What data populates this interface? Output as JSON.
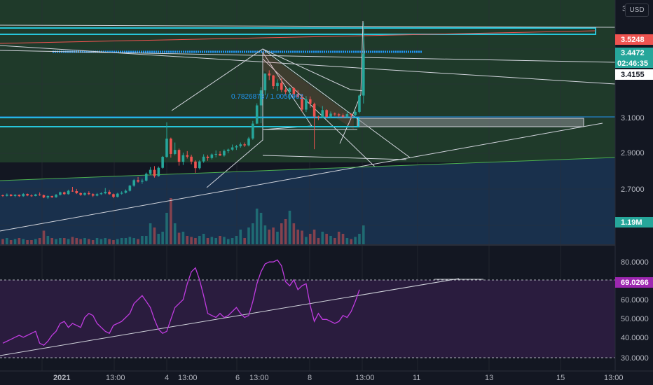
{
  "currency_label": "USD",
  "colors": {
    "background": "#131722",
    "up": "#26a69a",
    "down": "#ef5350",
    "rsi_line": "#c03ce0",
    "rsi_band": "#2a1c3e",
    "zone_green": "#1f3a2a",
    "zone_blue": "#19304c",
    "cyan": "#26c6da",
    "fib_text": "#2196f3"
  },
  "fib_label": "0.7826873 / 1.0050962",
  "price_axis": {
    "top_label": "3",
    "ticks": [
      "3.1000",
      "2.9000",
      "2.7000"
    ],
    "badges": [
      {
        "text": "3.5248",
        "kind": "red"
      },
      {
        "text": "3.4472",
        "kind": "teal"
      },
      {
        "text": "02:46:35",
        "kind": "teal"
      },
      {
        "text": "3.4155",
        "kind": "white"
      },
      {
        "text": "1.19M",
        "kind": "teal"
      }
    ]
  },
  "rsi_axis": {
    "ticks": [
      "80.0000",
      "60.0000",
      "50.0000",
      "40.0000",
      "30.0000"
    ],
    "badge": "69.0266"
  },
  "time_axis": {
    "labels": [
      "2021",
      "13:00",
      "4",
      "13:00",
      "6",
      "13:00",
      "8",
      "13:00",
      "11",
      "13",
      "15",
      "13:00"
    ]
  },
  "chart_data": [
    {
      "type": "candlestick",
      "title": "",
      "candles": [
        [
          2.607,
          2.612,
          2.598,
          2.604
        ],
        [
          2.604,
          2.618,
          2.6,
          2.611
        ],
        [
          2.611,
          2.615,
          2.6,
          2.603
        ],
        [
          2.603,
          2.614,
          2.596,
          2.61
        ],
        [
          2.61,
          2.612,
          2.598,
          2.602
        ],
        [
          2.602,
          2.62,
          2.598,
          2.615
        ],
        [
          2.615,
          2.618,
          2.602,
          2.606
        ],
        [
          2.606,
          2.613,
          2.598,
          2.603
        ],
        [
          2.603,
          2.616,
          2.601,
          2.612
        ],
        [
          2.612,
          2.624,
          2.604,
          2.608
        ],
        [
          2.608,
          2.611,
          2.59,
          2.594
        ],
        [
          2.594,
          2.607,
          2.586,
          2.603
        ],
        [
          2.603,
          2.605,
          2.591,
          2.596
        ],
        [
          2.596,
          2.615,
          2.592,
          2.61
        ],
        [
          2.61,
          2.629,
          2.606,
          2.625
        ],
        [
          2.625,
          2.629,
          2.61,
          2.614
        ],
        [
          2.614,
          2.64,
          2.611,
          2.634
        ],
        [
          2.634,
          2.657,
          2.628,
          2.632
        ],
        [
          2.632,
          2.645,
          2.615,
          2.62
        ],
        [
          2.62,
          2.624,
          2.604,
          2.61
        ],
        [
          2.61,
          2.625,
          2.605,
          2.62
        ],
        [
          2.62,
          2.631,
          2.608,
          2.614
        ],
        [
          2.614,
          2.619,
          2.597,
          2.605
        ],
        [
          2.605,
          2.621,
          2.601,
          2.614
        ],
        [
          2.614,
          2.626,
          2.609,
          2.619
        ],
        [
          2.619,
          2.65,
          2.614,
          2.628
        ],
        [
          2.628,
          2.638,
          2.61,
          2.614
        ],
        [
          2.614,
          2.618,
          2.59,
          2.598
        ],
        [
          2.598,
          2.622,
          2.594,
          2.617
        ],
        [
          2.617,
          2.631,
          2.611,
          2.622
        ],
        [
          2.622,
          2.642,
          2.618,
          2.634
        ],
        [
          2.634,
          2.669,
          2.629,
          2.664
        ],
        [
          2.664,
          2.704,
          2.658,
          2.697
        ],
        [
          2.697,
          2.716,
          2.682,
          2.688
        ],
        [
          2.688,
          2.705,
          2.675,
          2.694
        ],
        [
          2.694,
          2.742,
          2.689,
          2.735
        ],
        [
          2.735,
          2.774,
          2.729,
          2.758
        ],
        [
          2.758,
          2.78,
          2.712,
          2.721
        ],
        [
          2.721,
          2.778,
          2.717,
          2.77
        ],
        [
          2.77,
          2.84,
          2.765,
          2.835
        ],
        [
          2.835,
          3.04,
          2.829,
          2.943
        ],
        [
          2.943,
          2.949,
          2.83,
          2.852
        ],
        [
          2.852,
          2.92,
          2.845,
          2.876
        ],
        [
          2.876,
          2.884,
          2.783,
          2.806
        ],
        [
          2.806,
          2.86,
          2.787,
          2.845
        ],
        [
          2.845,
          2.869,
          2.825,
          2.836
        ],
        [
          2.836,
          2.848,
          2.791,
          2.807
        ],
        [
          2.807,
          2.815,
          2.74,
          2.768
        ],
        [
          2.768,
          2.815,
          2.76,
          2.808
        ],
        [
          2.808,
          2.85,
          2.8,
          2.836
        ],
        [
          2.836,
          2.846,
          2.812,
          2.828
        ],
        [
          2.828,
          2.855,
          2.82,
          2.849
        ],
        [
          2.849,
          2.873,
          2.832,
          2.852
        ],
        [
          2.852,
          2.868,
          2.84,
          2.843
        ],
        [
          2.843,
          2.879,
          2.836,
          2.87
        ],
        [
          2.87,
          2.884,
          2.857,
          2.878
        ],
        [
          2.878,
          2.908,
          2.871,
          2.891
        ],
        [
          2.891,
          2.906,
          2.876,
          2.898
        ],
        [
          2.898,
          2.92,
          2.889,
          2.909
        ],
        [
          2.909,
          2.92,
          2.894,
          2.903
        ],
        [
          2.903,
          2.953,
          2.897,
          2.944
        ],
        [
          2.944,
          3.048,
          2.936,
          3.032
        ],
        [
          3.032,
          3.152,
          3.029,
          3.14
        ],
        [
          3.14,
          3.248,
          3.034,
          3.229
        ],
        [
          3.229,
          3.328,
          3.2,
          3.329
        ],
        [
          3.329,
          3.348,
          3.29,
          3.317
        ],
        [
          3.317,
          3.321,
          3.237,
          3.254
        ],
        [
          3.254,
          3.294,
          3.226,
          3.273
        ],
        [
          3.273,
          3.3,
          3.218,
          3.232
        ],
        [
          3.232,
          3.246,
          3.202,
          3.22
        ],
        [
          3.22,
          3.246,
          3.173,
          3.242
        ],
        [
          3.242,
          3.249,
          3.192,
          3.206
        ],
        [
          3.206,
          3.231,
          3.185,
          3.19
        ],
        [
          3.19,
          3.205,
          3.1,
          3.115
        ],
        [
          3.115,
          3.195,
          3.1,
          3.176
        ],
        [
          3.176,
          3.193,
          3.126,
          3.149
        ],
        [
          3.149,
          3.156,
          2.88,
          3.074
        ],
        [
          3.074,
          3.079,
          3.053,
          3.069
        ],
        [
          3.069,
          3.136,
          3.064,
          3.112
        ],
        [
          3.112,
          3.117,
          3.065,
          3.072
        ],
        [
          3.072,
          3.104,
          3.063,
          3.091
        ],
        [
          3.091,
          3.098,
          3.078,
          3.087
        ],
        [
          3.087,
          3.094,
          3.073,
          3.081
        ],
        [
          3.081,
          3.092,
          3.065,
          3.073
        ],
        [
          3.073,
          3.108,
          3.068,
          3.088
        ],
        [
          3.088,
          3.093,
          3.063,
          3.083
        ],
        [
          3.083,
          3.111,
          3.076,
          3.101
        ],
        [
          3.101,
          3.205,
          3.093,
          3.198
        ],
        [
          3.198,
          3.63,
          3.151,
          3.447
        ]
      ],
      "volume": [
        2.5,
        3,
        2,
        2.5,
        3,
        2.5,
        2,
        2,
        2.5,
        3,
        6.5,
        4,
        3,
        2.5,
        3,
        3,
        2.5,
        3.5,
        3,
        2.5,
        3,
        2.5,
        2,
        3,
        2.5,
        3,
        2.5,
        2,
        2.5,
        3,
        3,
        3.5,
        3,
        2.5,
        4,
        4,
        10,
        8,
        5,
        6,
        15,
        22,
        10,
        5.5,
        6,
        4,
        3.5,
        3,
        4,
        5,
        3,
        3.5,
        3,
        4,
        3.5,
        2.5,
        3,
        4,
        7,
        3,
        8,
        10,
        17,
        15,
        9,
        7,
        8,
        6,
        10,
        12,
        16,
        10,
        7,
        6.5,
        3.5,
        5,
        7,
        3,
        6,
        5,
        4,
        3,
        6,
        5,
        3,
        2.5,
        3.5,
        5,
        9
      ],
      "volume_badge": "1.19M",
      "price_range": [
        2.52,
        3.64
      ],
      "levels": [
        3.5248,
        3.4472,
        3.4155,
        3.1
      ]
    },
    {
      "type": "line",
      "title": "",
      "series": [
        {
          "values": [
            42,
            43,
            44,
            45,
            46,
            45,
            46,
            47,
            48,
            42,
            41,
            43,
            46,
            48,
            52,
            53,
            50,
            52,
            51,
            50,
            55,
            57,
            56,
            52,
            50,
            48,
            47,
            51,
            52,
            53,
            55,
            57,
            62,
            64,
            66,
            63,
            60,
            54,
            49,
            47,
            48,
            54,
            60,
            62,
            64,
            72,
            78,
            80,
            74,
            66,
            57,
            56,
            55,
            57,
            55,
            56,
            58,
            60,
            57,
            55,
            56,
            63,
            72,
            78,
            82,
            83,
            83,
            84,
            81,
            73,
            71,
            74,
            69,
            71,
            72,
            61,
            53,
            57,
            54,
            54,
            53,
            52,
            53,
            56,
            55,
            58,
            63,
            69
          ]
        }
      ],
      "ylim": [
        28,
        88
      ],
      "last_value": 69.0266
    }
  ]
}
